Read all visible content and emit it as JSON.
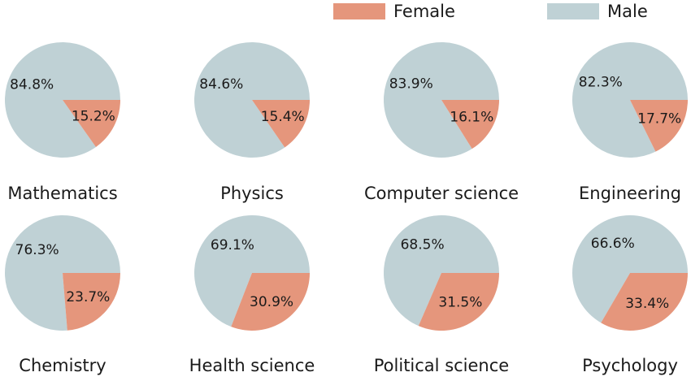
{
  "chart_data": {
    "type": "pie",
    "legend": {
      "placement": "top-right",
      "entries": [
        {
          "name": "Female",
          "color": "#e5967c"
        },
        {
          "name": "Male",
          "color": "#bfd1d5"
        }
      ]
    },
    "charts": [
      {
        "title": "Mathematics",
        "female": 15.2,
        "male": 84.8,
        "female_label": "15.2%",
        "male_label": "84.8%"
      },
      {
        "title": "Physics",
        "female": 15.4,
        "male": 84.6,
        "female_label": "15.4%",
        "male_label": "84.6%"
      },
      {
        "title": "Computer science",
        "female": 16.1,
        "male": 83.9,
        "female_label": "16.1%",
        "male_label": "83.9%"
      },
      {
        "title": "Engineering",
        "female": 17.7,
        "male": 82.3,
        "female_label": "17.7%",
        "male_label": "82.3%"
      },
      {
        "title": "Chemistry",
        "female": 23.7,
        "male": 76.3,
        "female_label": "23.7%",
        "male_label": "76.3%"
      },
      {
        "title": "Health science",
        "female": 30.9,
        "male": 69.1,
        "female_label": "30.9%",
        "male_label": "69.1%"
      },
      {
        "title": "Political science",
        "female": 31.5,
        "male": 68.5,
        "female_label": "31.5%",
        "male_label": "68.5%"
      },
      {
        "title": "Psychology",
        "female": 33.4,
        "male": 66.6,
        "female_label": "33.4%",
        "male_label": "66.6%"
      }
    ]
  }
}
